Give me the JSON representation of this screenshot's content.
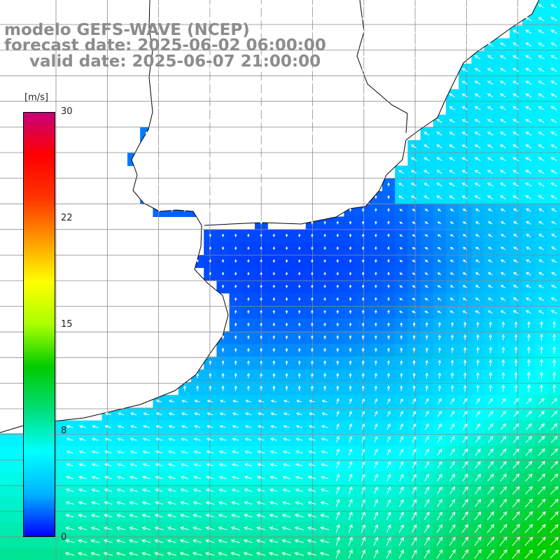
{
  "header": {
    "line1": "modelo GEFS-WAVE (NCEP)",
    "line2": "forecast date: 2025-06-02 06:00:00",
    "line3": "valid date: 2025-06-07 21:00:00"
  },
  "colorbar": {
    "unit": "[m/s]",
    "ticks": [
      "30",
      "22",
      "15",
      "8",
      "0"
    ],
    "values": [
      30,
      22,
      15,
      8,
      0
    ],
    "min": 0,
    "max": 30,
    "colors": [
      "#0000ff",
      "#00b4ff",
      "#00ffff",
      "#00dd77",
      "#00cc00",
      "#aaff00",
      "#ffff00",
      "#ff9900",
      "#ff3300",
      "#ff0000",
      "#c8007a"
    ]
  },
  "map": {
    "field": "wind speed and direction",
    "region": "South Atlantic coast, Rio de la Plata / Uruguay / Southern Brazil",
    "land_color": "#ffffff",
    "coast_color": "#000000",
    "grid_color": "#8a8a8a",
    "arrow_color": "#ffffff",
    "speed_range_shown": [
      0,
      12
    ]
  }
}
